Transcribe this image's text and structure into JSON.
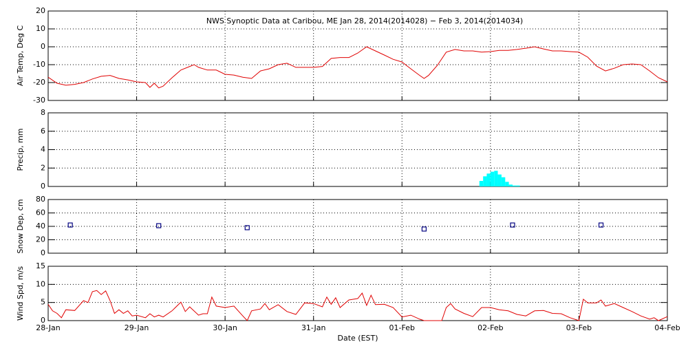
{
  "chart_data": [
    {
      "type": "line",
      "title": "NWS Synoptic Data at Caribou, ME   Jan 28, 2014(2014028) − Feb  3, 2014(2014034)",
      "ylabel": "Air Temp, Deg C",
      "color": "#e00000",
      "xlim": [
        0,
        7
      ],
      "xticks": [
        1,
        2,
        3,
        4,
        5,
        6
      ],
      "ylim": [
        -30,
        20
      ],
      "yticks": [
        -30,
        -20,
        -10,
        0,
        10,
        20
      ],
      "grid": true,
      "x": [
        0,
        0.1,
        0.2,
        0.3,
        0.4,
        0.5,
        0.6,
        0.7,
        0.8,
        0.9,
        1.0,
        1.1,
        1.15,
        1.2,
        1.25,
        1.3,
        1.4,
        1.5,
        1.6,
        1.65,
        1.7,
        1.8,
        1.9,
        2.0,
        2.1,
        2.2,
        2.3,
        2.4,
        2.5,
        2.6,
        2.7,
        2.8,
        2.9,
        3.0,
        3.1,
        3.2,
        3.3,
        3.4,
        3.5,
        3.6,
        3.7,
        3.8,
        3.9,
        4.0,
        4.1,
        4.2,
        4.25,
        4.3,
        4.4,
        4.5,
        4.6,
        4.7,
        4.8,
        4.9,
        5.0,
        5.1,
        5.2,
        5.3,
        5.4,
        5.5,
        5.6,
        5.7,
        5.8,
        5.9,
        6.0,
        6.1,
        6.2,
        6.3,
        6.4,
        6.5,
        6.6,
        6.7,
        6.8,
        6.9,
        7.0
      ],
      "values": [
        -17,
        -20.4,
        -21.5,
        -21,
        -20,
        -18,
        -16.5,
        -16,
        -17.7,
        -18.5,
        -19.6,
        -20,
        -22.7,
        -20.4,
        -23,
        -22,
        -17.3,
        -13,
        -11,
        -10,
        -11.5,
        -13,
        -13,
        -15.4,
        -15.8,
        -17,
        -17.7,
        -13.5,
        -12.3,
        -10,
        -9.2,
        -11.5,
        -11.5,
        -11.5,
        -11,
        -6.5,
        -6,
        -6,
        -3.5,
        0,
        -2.3,
        -4.6,
        -7,
        -8.5,
        -12.3,
        -16,
        -17.7,
        -16,
        -10.4,
        -3,
        -1.5,
        -2.3,
        -2.3,
        -3,
        -2.7,
        -2,
        -2,
        -1.5,
        -0.8,
        0,
        -1.2,
        -2.3,
        -2.3,
        -2.7,
        -3,
        -5.8,
        -10.8,
        -13.5,
        -12,
        -10,
        -9.6,
        -10,
        -13.5,
        -17.3,
        -19.6
      ]
    },
    {
      "type": "histogram",
      "ylabel": "Precip, mm",
      "color": "#00ffff",
      "xlim": [
        0,
        7
      ],
      "xticks": [
        1,
        2,
        3,
        4,
        5,
        6
      ],
      "ylim": [
        0,
        8
      ],
      "yticks": [
        0,
        2,
        4,
        6,
        8
      ],
      "grid": true,
      "bins": [
        4.875,
        4.917,
        4.958,
        5.0,
        5.042,
        5.083,
        5.125,
        5.167,
        5.208,
        5.25,
        5.292,
        5.333
      ],
      "values": [
        0.6,
        1.1,
        1.4,
        1.6,
        1.7,
        1.3,
        1.0,
        0.5,
        0.2,
        0.1,
        0.1
      ]
    },
    {
      "type": "scatter",
      "ylabel": "Snow Dep, cm",
      "color": "#000080",
      "xlim": [
        0,
        7
      ],
      "xticks": [
        1,
        2,
        3,
        4,
        5,
        6
      ],
      "ylim": [
        0,
        80
      ],
      "yticks": [
        0,
        20,
        40,
        60,
        80
      ],
      "grid": true,
      "x": [
        0.25,
        1.25,
        2.25,
        4.25,
        5.25,
        6.25
      ],
      "values": [
        42,
        41,
        38,
        36,
        42,
        42
      ]
    },
    {
      "type": "line",
      "ylabel": "Wind Spd, m/s",
      "xlabel": "Date (EST)",
      "color": "#e00000",
      "xlim": [
        0,
        7
      ],
      "xticks": [
        {
          "value": 0,
          "label": "28-Jan"
        },
        {
          "value": 1,
          "label": "29-Jan"
        },
        {
          "value": 2,
          "label": "30-Jan"
        },
        {
          "value": 3,
          "label": "31-Jan"
        },
        {
          "value": 4,
          "label": "01-Feb"
        },
        {
          "value": 5,
          "label": "02-Feb"
        },
        {
          "value": 6,
          "label": "03-Feb"
        },
        {
          "value": 7,
          "label": "04-Feb"
        }
      ],
      "ylim": [
        0,
        15
      ],
      "yticks": [
        0,
        5,
        10,
        15
      ],
      "grid": true,
      "x": [
        0,
        0.05,
        0.1,
        0.15,
        0.2,
        0.3,
        0.4,
        0.45,
        0.5,
        0.55,
        0.6,
        0.65,
        0.7,
        0.75,
        0.8,
        0.85,
        0.9,
        0.95,
        1.0,
        1.1,
        1.15,
        1.2,
        1.25,
        1.3,
        1.4,
        1.5,
        1.55,
        1.6,
        1.7,
        1.75,
        1.8,
        1.85,
        1.9,
        2.0,
        2.1,
        2.2,
        2.25,
        2.3,
        2.4,
        2.45,
        2.5,
        2.6,
        2.7,
        2.8,
        2.9,
        3.0,
        3.1,
        3.15,
        3.2,
        3.25,
        3.3,
        3.4,
        3.5,
        3.55,
        3.6,
        3.65,
        3.7,
        3.8,
        3.9,
        4.0,
        4.1,
        4.2,
        4.25,
        4.45,
        4.5,
        4.55,
        4.6,
        4.7,
        4.8,
        4.9,
        5.0,
        5.1,
        5.2,
        5.3,
        5.4,
        5.5,
        5.6,
        5.7,
        5.8,
        5.9,
        6.0,
        6.05,
        6.1,
        6.2,
        6.25,
        6.3,
        6.4,
        6.5,
        6.6,
        6.7,
        6.8,
        6.85,
        6.9,
        7.0
      ],
      "values": [
        4.5,
        2.7,
        2,
        0.8,
        3,
        2.8,
        5.5,
        5,
        8,
        8.3,
        7.2,
        8.2,
        5.5,
        2,
        3,
        2,
        2.7,
        1.3,
        1.5,
        0.8,
        1.9,
        1,
        1.5,
        1,
        2.7,
        5.1,
        2.5,
        3.8,
        1.5,
        1.9,
        1.9,
        6.5,
        4,
        3.6,
        4,
        1.3,
        0,
        2.7,
        3.2,
        4.7,
        3,
        4.4,
        2.5,
        1.7,
        4.9,
        4.7,
        3.8,
        6.5,
        4.5,
        6.3,
        3.6,
        5.7,
        6.1,
        7.6,
        4.2,
        7,
        4.4,
        4.5,
        3.6,
        1,
        1.5,
        0.4,
        0,
        0,
        3.6,
        4.7,
        3.2,
        2,
        1.1,
        3.6,
        3.6,
        3,
        2.7,
        1.7,
        1.3,
        2.7,
        2.8,
        2,
        1.9,
        0.8,
        0,
        5.9,
        4.9,
        4.9,
        5.7,
        4,
        4.7,
        3.6,
        2.5,
        1.3,
        0.4,
        0.8,
        0,
        1.1
      ]
    }
  ]
}
